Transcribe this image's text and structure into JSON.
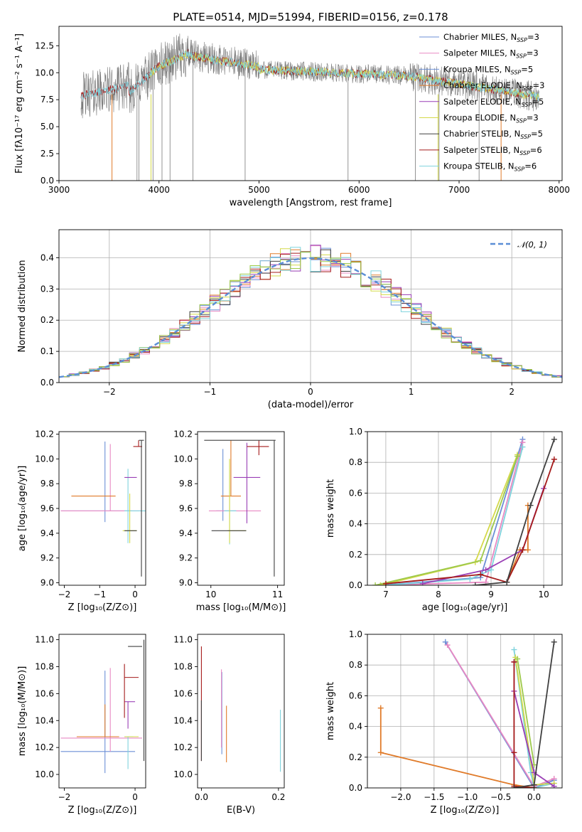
{
  "chart_data": [
    {
      "id": "spectrum",
      "type": "line",
      "title": "PLATE=0514, MJD=51994, FIBERID=0156, z=0.178",
      "xlabel": "wavelength [Angstrom, rest frame]",
      "ylabel": "Flux [fλ10⁻¹⁷ erg cm⁻² s⁻¹ A⁻¹]",
      "xlim": [
        3000,
        8030
      ],
      "ylim": [
        0,
        14.3
      ],
      "xticks": [
        3000,
        4000,
        5000,
        6000,
        7000,
        8000
      ],
      "yticks": [
        0.0,
        2.5,
        5.0,
        7.5,
        10.0,
        12.5
      ],
      "legend_position": "upper-right",
      "legend": [
        {
          "label": "Chabrier MILES, N",
          "sub": "SSP",
          "tail": "=3",
          "color": "#6b8fd6"
        },
        {
          "label": "Salpeter MILES, N",
          "sub": "SSP",
          "tail": "=3",
          "color": "#e889c3"
        },
        {
          "label": "Kroupa MILES, N",
          "sub": "SSP",
          "tail": "=5",
          "color": "#6b8fd6"
        },
        {
          "label": "Chabrier ELODIE, N",
          "sub": "SSP",
          "tail": "=3",
          "color": "#e07b2a"
        },
        {
          "label": "Salpeter ELODIE, N",
          "sub": "SSP",
          "tail": "=5",
          "color": "#9a3fb5"
        },
        {
          "label": "Kroupa ELODIE, N",
          "sub": "SSP",
          "tail": "=3",
          "color": "#d4d94a"
        },
        {
          "label": "Chabrier STELIB, N",
          "sub": "SSP",
          "tail": "=5",
          "color": "#404040"
        },
        {
          "label": "Salpeter STELIB, N",
          "sub": "SSP",
          "tail": "=6",
          "color": "#a51b1b"
        },
        {
          "label": "Kroupa STELIB, N",
          "sub": "SSP",
          "tail": "=6",
          "color": "#7fd3dd"
        }
      ]
    },
    {
      "id": "residuals",
      "type": "histogram",
      "xlabel": "(data-model)/error",
      "ylabel": "Normed distribution",
      "xlim": [
        -2.5,
        2.5
      ],
      "ylim": [
        0,
        0.49
      ],
      "xticks": [
        -2,
        -1,
        0,
        1,
        2
      ],
      "yticks": [
        0.0,
        0.1,
        0.2,
        0.3,
        0.4
      ],
      "grid": true,
      "legend_position": "upper-right",
      "legend": [
        {
          "label": "𝒩(0, 1)",
          "color": "#5b8ed6",
          "style": "dashed"
        }
      ],
      "bin_width": 0.1
    },
    {
      "id": "age-vs-Z",
      "type": "errorbar",
      "xlabel": "Z [log₁₀(Z/Z⊙)]",
      "ylabel": "age  [log₁₀(age/yr)]",
      "xlim": [
        -2.15,
        0.3
      ],
      "ylim": [
        8.98,
        10.22
      ],
      "xticks": [
        -2,
        -1,
        0
      ],
      "yticks": [
        9.0,
        9.2,
        9.4,
        9.6,
        9.8,
        10.0,
        10.2
      ],
      "points": [
        {
          "x": -0.85,
          "y": 9.58,
          "xlo": 1.25,
          "xhi": 0.75,
          "ylo": 0.09,
          "yhi": 0.56,
          "color": "#6b8fd6"
        },
        {
          "x": -0.7,
          "y": 9.58,
          "xlo": 1.4,
          "xhi": 0.9,
          "ylo": 0.0,
          "yhi": 0.54,
          "color": "#e889c3"
        },
        {
          "x": -0.2,
          "y": 9.58,
          "xlo": 0.1,
          "xhi": 0.55,
          "ylo": 0.26,
          "yhi": 0.34,
          "color": "#7fd3dd"
        },
        {
          "x": -1.0,
          "y": 9.7,
          "xlo": 0.8,
          "xhi": 0.45,
          "ylo": 0.0,
          "yhi": 0.0,
          "color": "#e07b2a"
        },
        {
          "x": -0.15,
          "y": 9.85,
          "xlo": 0.15,
          "xhi": 0.2,
          "ylo": 0.0,
          "yhi": 0.0,
          "color": "#9a3fb5"
        },
        {
          "x": -0.15,
          "y": 9.42,
          "xlo": 0.2,
          "xhi": 0.2,
          "ylo": 0.1,
          "yhi": 0.3,
          "color": "#d4d94a"
        },
        {
          "x": -0.1,
          "y": 9.42,
          "xlo": 0.2,
          "xhi": 0.15,
          "ylo": 0.0,
          "yhi": 0.0,
          "color": "#404040"
        },
        {
          "x": 0.1,
          "y": 10.1,
          "xlo": 0.15,
          "xhi": 0.1,
          "ylo": 0.0,
          "yhi": 0.05,
          "color": "#a51b1b"
        },
        {
          "x": 0.18,
          "y": 10.15,
          "xlo": 0.07,
          "xhi": 0.07,
          "ylo": 1.1,
          "yhi": 0.0,
          "color": "#404040"
        }
      ]
    },
    {
      "id": "age-vs-mass",
      "type": "errorbar",
      "xlabel": "mass [log₁₀(M/M⊙)]",
      "ylabel": "",
      "xlim": [
        9.8,
        11.1
      ],
      "ylim": [
        8.98,
        10.22
      ],
      "xticks": [
        10,
        11
      ],
      "yticks": [
        9.0,
        9.2,
        9.4,
        9.6,
        9.8,
        10.0,
        10.2
      ],
      "points": [
        {
          "x": 10.18,
          "y": 9.58,
          "xlo": 0.1,
          "xhi": 0.2,
          "ylo": 0.08,
          "yhi": 0.5,
          "color": "#6b8fd6"
        },
        {
          "x": 10.27,
          "y": 9.58,
          "xlo": 0.3,
          "xhi": 0.48,
          "ylo": 0.0,
          "yhi": 0.0,
          "color": "#e889c3"
        },
        {
          "x": 10.3,
          "y": 9.7,
          "xlo": 0.15,
          "xhi": 0.15,
          "ylo": 0.0,
          "yhi": 0.45,
          "color": "#e07b2a"
        },
        {
          "x": 10.28,
          "y": 9.58,
          "xlo": 0.08,
          "xhi": 0.1,
          "ylo": 0.27,
          "yhi": 0.33,
          "color": "#7fd3dd"
        },
        {
          "x": 10.54,
          "y": 9.85,
          "xlo": 0.2,
          "xhi": 0.2,
          "ylo": 0.37,
          "yhi": 0.28,
          "color": "#9a3fb5"
        },
        {
          "x": 10.28,
          "y": 9.42,
          "xlo": 0.03,
          "xhi": 0.25,
          "ylo": 0.1,
          "yhi": 0.58,
          "color": "#d4d94a"
        },
        {
          "x": 10.28,
          "y": 9.42,
          "xlo": 0.27,
          "xhi": 0.25,
          "ylo": 0.0,
          "yhi": 0.0,
          "color": "#404040"
        },
        {
          "x": 10.72,
          "y": 10.1,
          "xlo": 0.18,
          "xhi": 0.15,
          "ylo": 0.07,
          "yhi": 0.05,
          "color": "#a51b1b"
        },
        {
          "x": 10.95,
          "y": 10.15,
          "xlo": 1.05,
          "xhi": 0.02,
          "ylo": 1.1,
          "yhi": 0.0,
          "color": "#404040"
        }
      ]
    },
    {
      "id": "mass-weight-vs-age",
      "type": "line",
      "xlabel": "age  [log₁₀(age/yr)]",
      "ylabel": "mass weight",
      "xlim": [
        6.65,
        10.35
      ],
      "ylim": [
        0,
        1.0
      ],
      "xticks": [
        7,
        8,
        9,
        10
      ],
      "yticks": [
        0.0,
        0.2,
        0.4,
        0.6,
        0.8,
        1.0
      ],
      "grid": true,
      "series": [
        {
          "color": "#6b8fd6",
          "x": [
            6.9,
            8.8,
            9.6
          ],
          "y": [
            0.0,
            0.05,
            0.95
          ]
        },
        {
          "color": "#e889c3",
          "x": [
            6.9,
            8.9,
            9.6
          ],
          "y": [
            0.0,
            0.02,
            0.93
          ]
        },
        {
          "color": "#7fd3dd",
          "x": [
            7.0,
            8.6,
            9.0,
            9.6
          ],
          "y": [
            0.0,
            0.04,
            0.1,
            0.9
          ]
        },
        {
          "color": "#d4d94a",
          "x": [
            6.9,
            8.7,
            9.5
          ],
          "y": [
            0.0,
            0.15,
            0.85
          ]
        },
        {
          "color": "#9dc94a",
          "x": [
            6.8,
            8.8,
            9.5
          ],
          "y": [
            0.0,
            0.16,
            0.84
          ]
        },
        {
          "color": "#e07b2a",
          "x": [
            9.3,
            9.55,
            9.7,
            9.7
          ],
          "y": [
            0.02,
            0.23,
            0.23,
            0.52
          ]
        },
        {
          "color": "#9a3fb5",
          "x": [
            7.7,
            8.9,
            9.6,
            10.0
          ],
          "y": [
            0.01,
            0.1,
            0.23,
            0.63
          ]
        },
        {
          "color": "#a51b1b",
          "x": [
            7.0,
            8.8,
            9.3,
            9.6,
            10.2
          ],
          "y": [
            0.01,
            0.07,
            0.02,
            0.23,
            0.82
          ]
        },
        {
          "color": "#404040",
          "x": [
            8.7,
            9.3,
            9.75,
            10.2
          ],
          "y": [
            0.0,
            0.02,
            0.52,
            0.95
          ]
        }
      ]
    },
    {
      "id": "mass-vs-Z",
      "type": "errorbar",
      "xlabel": "Z [log₁₀(Z/Z⊙)]",
      "ylabel": "mass [log₁₀(M/M⊙)]",
      "xlim": [
        -2.15,
        0.3
      ],
      "ylim": [
        9.9,
        11.04
      ],
      "xticks": [
        -2,
        0
      ],
      "yticks": [
        10.0,
        10.2,
        10.4,
        10.6,
        10.8,
        11.0
      ],
      "points": [
        {
          "x": -0.85,
          "y": 10.17,
          "xlo": 1.25,
          "xhi": 0.85,
          "ylo": 0.16,
          "yhi": 0.6,
          "color": "#6b8fd6"
        },
        {
          "x": -0.7,
          "y": 10.27,
          "xlo": 1.4,
          "xhi": 0.9,
          "ylo": 0.1,
          "yhi": 0.52,
          "color": "#e889c3"
        },
        {
          "x": -0.85,
          "y": 10.28,
          "xlo": 0.8,
          "xhi": 0.4,
          "ylo": 0.0,
          "yhi": 0.24,
          "color": "#e07b2a"
        },
        {
          "x": -0.2,
          "y": 10.28,
          "xlo": 0.1,
          "xhi": 0.15,
          "ylo": 0.24,
          "yhi": 0.0,
          "color": "#7fd3dd"
        },
        {
          "x": -0.3,
          "y": 10.28,
          "xlo": 0.0,
          "xhi": 0.4,
          "ylo": 0.0,
          "yhi": 0.0,
          "color": "#d4d94a"
        },
        {
          "x": -0.2,
          "y": 10.54,
          "xlo": 0.1,
          "xhi": 0.2,
          "ylo": 0.2,
          "yhi": 0.0,
          "color": "#9a3fb5"
        },
        {
          "x": -0.3,
          "y": 10.72,
          "xlo": 0.0,
          "xhi": 0.4,
          "ylo": 0.3,
          "yhi": 0.1,
          "color": "#a51b1b"
        },
        {
          "x": -0.2,
          "y": 10.95,
          "xlo": 0.0,
          "xhi": 0.4,
          "ylo": 0.0,
          "yhi": 0.0,
          "color": "#404040"
        },
        {
          "x": 0.25,
          "y": 10.95,
          "xlo": 0.0,
          "xhi": 0.0,
          "ylo": 0.85,
          "yhi": 0.05,
          "color": "#404040"
        }
      ]
    },
    {
      "id": "mass-vs-ebv",
      "type": "errorbar",
      "xlabel": "E(B-V)",
      "ylabel": "",
      "xlim": [
        -0.01,
        0.215
      ],
      "ylim": [
        9.9,
        11.04
      ],
      "xticks": [
        0.0,
        0.2
      ],
      "yticks": [
        10.0,
        10.2,
        10.4,
        10.6,
        10.8,
        11.0
      ],
      "points": [
        {
          "x": 0.0,
          "y": 10.5,
          "xlo": 0.0,
          "xhi": 0.0,
          "ylo": 0.4,
          "yhi": 0.45,
          "color": "#a51b1b"
        },
        {
          "x": 0.0,
          "y": 10.4,
          "xlo": 0.0,
          "xhi": 0.0,
          "ylo": 0.3,
          "yhi": 0.15,
          "color": "#404040"
        },
        {
          "x": 0.053,
          "y": 10.5,
          "xlo": 0.0,
          "xhi": 0.0,
          "ylo": 0.35,
          "yhi": 0.26,
          "color": "#6b8fd6"
        },
        {
          "x": 0.052,
          "y": 10.55,
          "xlo": 0.0,
          "xhi": 0.0,
          "ylo": 0.35,
          "yhi": 0.23,
          "color": "#e889c3"
        },
        {
          "x": 0.065,
          "y": 10.3,
          "xlo": 0.0,
          "xhi": 0.0,
          "ylo": 0.21,
          "yhi": 0.21,
          "color": "#e07b2a"
        },
        {
          "x": 0.205,
          "y": 10.3,
          "xlo": 0.0,
          "xhi": 0.0,
          "ylo": 0.28,
          "yhi": 0.18,
          "color": "#7fd3dd"
        }
      ]
    },
    {
      "id": "mass-weight-vs-Z",
      "type": "line",
      "xlabel": "Z [log₁₀(Z/Z⊙)]",
      "ylabel": "mass weight",
      "xlim": [
        -2.5,
        0.42
      ],
      "ylim": [
        0,
        1.0
      ],
      "xticks": [
        -2.0,
        -1.5,
        -1.0,
        -0.5,
        0.0
      ],
      "yticks": [
        0.0,
        0.2,
        0.4,
        0.6,
        0.8,
        1.0
      ],
      "grid": true,
      "series": [
        {
          "color": "#6b8fd6",
          "x": [
            -1.33,
            0.0,
            0.3
          ],
          "y": [
            0.95,
            0.0,
            0.05
          ]
        },
        {
          "color": "#e889c3",
          "x": [
            -1.3,
            0.0,
            0.3
          ],
          "y": [
            0.93,
            0.01,
            0.06
          ]
        },
        {
          "color": "#7fd3dd",
          "x": [
            -0.3,
            -0.05,
            0.0,
            0.3
          ],
          "y": [
            0.9,
            0.1,
            0.0,
            0.03
          ]
        },
        {
          "color": "#d4d94a",
          "x": [
            -0.28,
            0.0,
            0.3
          ],
          "y": [
            0.85,
            0.02,
            0.03
          ]
        },
        {
          "color": "#9dc94a",
          "x": [
            -0.25,
            0.0
          ],
          "y": [
            0.84,
            0.15
          ]
        },
        {
          "color": "#e07b2a",
          "x": [
            -2.3,
            -2.3,
            -0.3,
            0.0
          ],
          "y": [
            0.52,
            0.23,
            0.02,
            0.0
          ]
        },
        {
          "color": "#9a3fb5",
          "x": [
            -0.3,
            -0.3,
            0.0,
            0.3
          ],
          "y": [
            0.82,
            0.63,
            0.1,
            0.01
          ]
        },
        {
          "color": "#a51b1b",
          "x": [
            -0.3,
            -0.3,
            -0.3,
            0.0
          ],
          "y": [
            0.82,
            0.23,
            0.01,
            0.0
          ]
        },
        {
          "color": "#404040",
          "x": [
            -0.3,
            0.0,
            0.3
          ],
          "y": [
            0.0,
            0.02,
            0.95
          ]
        }
      ]
    }
  ]
}
